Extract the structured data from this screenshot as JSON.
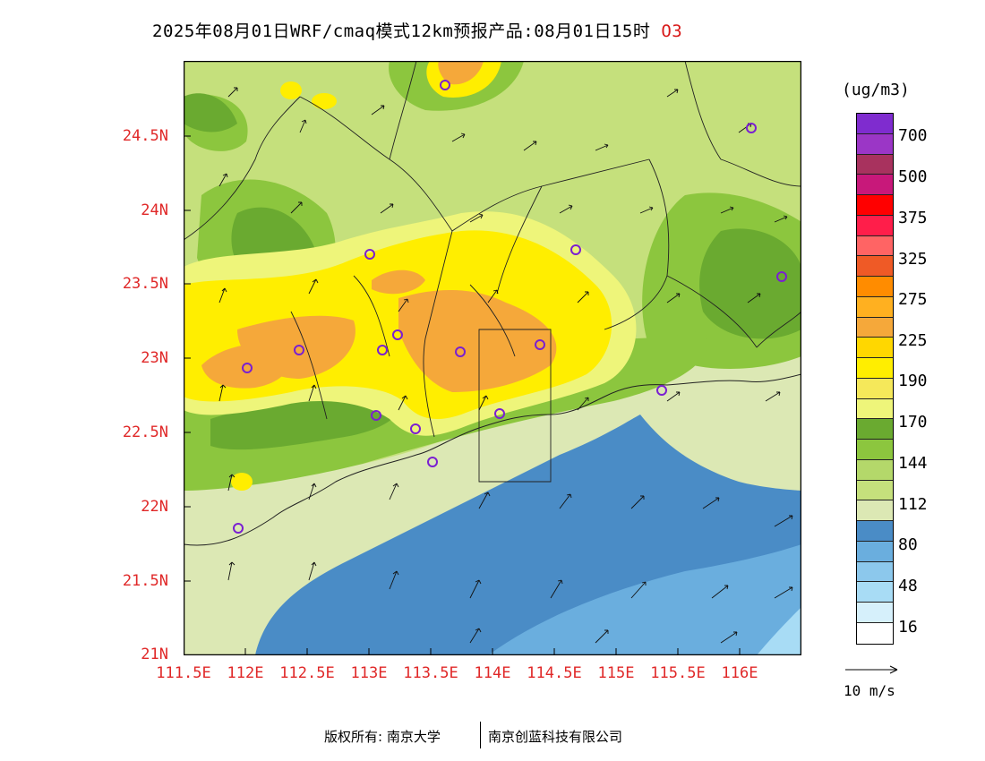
{
  "header": {
    "title": "2025年08月01日WRF/cmaq模式12km预报产品:08月01日15时",
    "species": "O3"
  },
  "map": {
    "lat_labels": [
      "24.5N",
      "24N",
      "23.5N",
      "23N",
      "22.5N",
      "22N",
      "21.5N",
      "21N"
    ],
    "lon_labels": [
      "111.5E",
      "112E",
      "112.5E",
      "113E",
      "113.5E",
      "114E",
      "114.5E",
      "115E",
      "115.5E",
      "116E"
    ]
  },
  "legend": {
    "unit": "(ug/m3)",
    "labels": [
      "700",
      "500",
      "375",
      "325",
      "275",
      "225",
      "190",
      "170",
      "144",
      "112",
      "80",
      "48",
      "16"
    ],
    "colors": [
      "#7f2ccf",
      "#9b36c6",
      "#a8325e",
      "#c8187a",
      "#ff0000",
      "#ff1e4a",
      "#ff6464",
      "#ef5a26",
      "#ff8c00",
      "#ffb020",
      "#f5a83a",
      "#ffd700",
      "#ffee00",
      "#f5e85a",
      "#eef57a",
      "#6aaa30",
      "#8cc63e",
      "#b4d86a",
      "#c5e07c",
      "#dce8b4",
      "#4a8cc6",
      "#6aaede",
      "#8cc8ec",
      "#a8dcf5",
      "#d6f0fb",
      "#ffffff"
    ],
    "vector_ref_label": "10 m/s"
  },
  "footer": {
    "copyright": "版权所有: 南京大学",
    "partner": "南京创蓝科技有限公司"
  }
}
